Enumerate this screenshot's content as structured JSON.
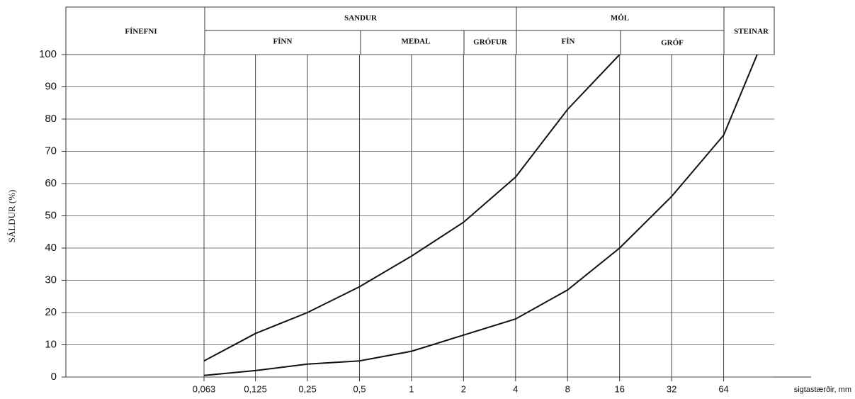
{
  "chart_data": {
    "type": "line",
    "y_label": "SÁLDUR (%)",
    "x_label": "sigtastærðir, mm",
    "header": {
      "fines": "FÍNEFNI",
      "sand": "SANDUR",
      "sand_fine": "FÍNN",
      "sand_medium": "MEÐAL",
      "sand_coarse": "GRÓFUR",
      "gravel": "MÖL",
      "gravel_fine": "FÍN",
      "gravel_coarse": "GRÓF",
      "stones": "STEINAR"
    },
    "log_x": true,
    "log_base": 2,
    "xlim": [
      0.01,
      128
    ],
    "xticks": [
      {
        "value": 0.063,
        "label": "0,063"
      },
      {
        "value": 0.125,
        "label": "0,125"
      },
      {
        "value": 0.25,
        "label": "0,25"
      },
      {
        "value": 0.5,
        "label": "0,5"
      },
      1,
      2,
      4,
      8,
      16,
      32,
      64
    ],
    "ylim": [
      0,
      100
    ],
    "yticks": [
      0,
      10,
      20,
      30,
      40,
      50,
      60,
      70,
      80,
      90,
      100
    ],
    "grid": true,
    "series": [
      {
        "color": "#111111",
        "x": [
          0.063,
          0.125,
          0.25,
          0.5,
          1,
          2,
          4,
          8,
          16
        ],
        "values": [
          5,
          13.5,
          20,
          28,
          37.5,
          48,
          62,
          83,
          100
        ]
      },
      {
        "color": "#111111",
        "x": [
          0.063,
          0.125,
          0.25,
          0.5,
          1,
          2,
          4,
          8,
          16,
          32,
          64,
          100
        ],
        "values": [
          0.5,
          2,
          4,
          5,
          8,
          13,
          18,
          27,
          40,
          56,
          75,
          100
        ]
      }
    ]
  }
}
